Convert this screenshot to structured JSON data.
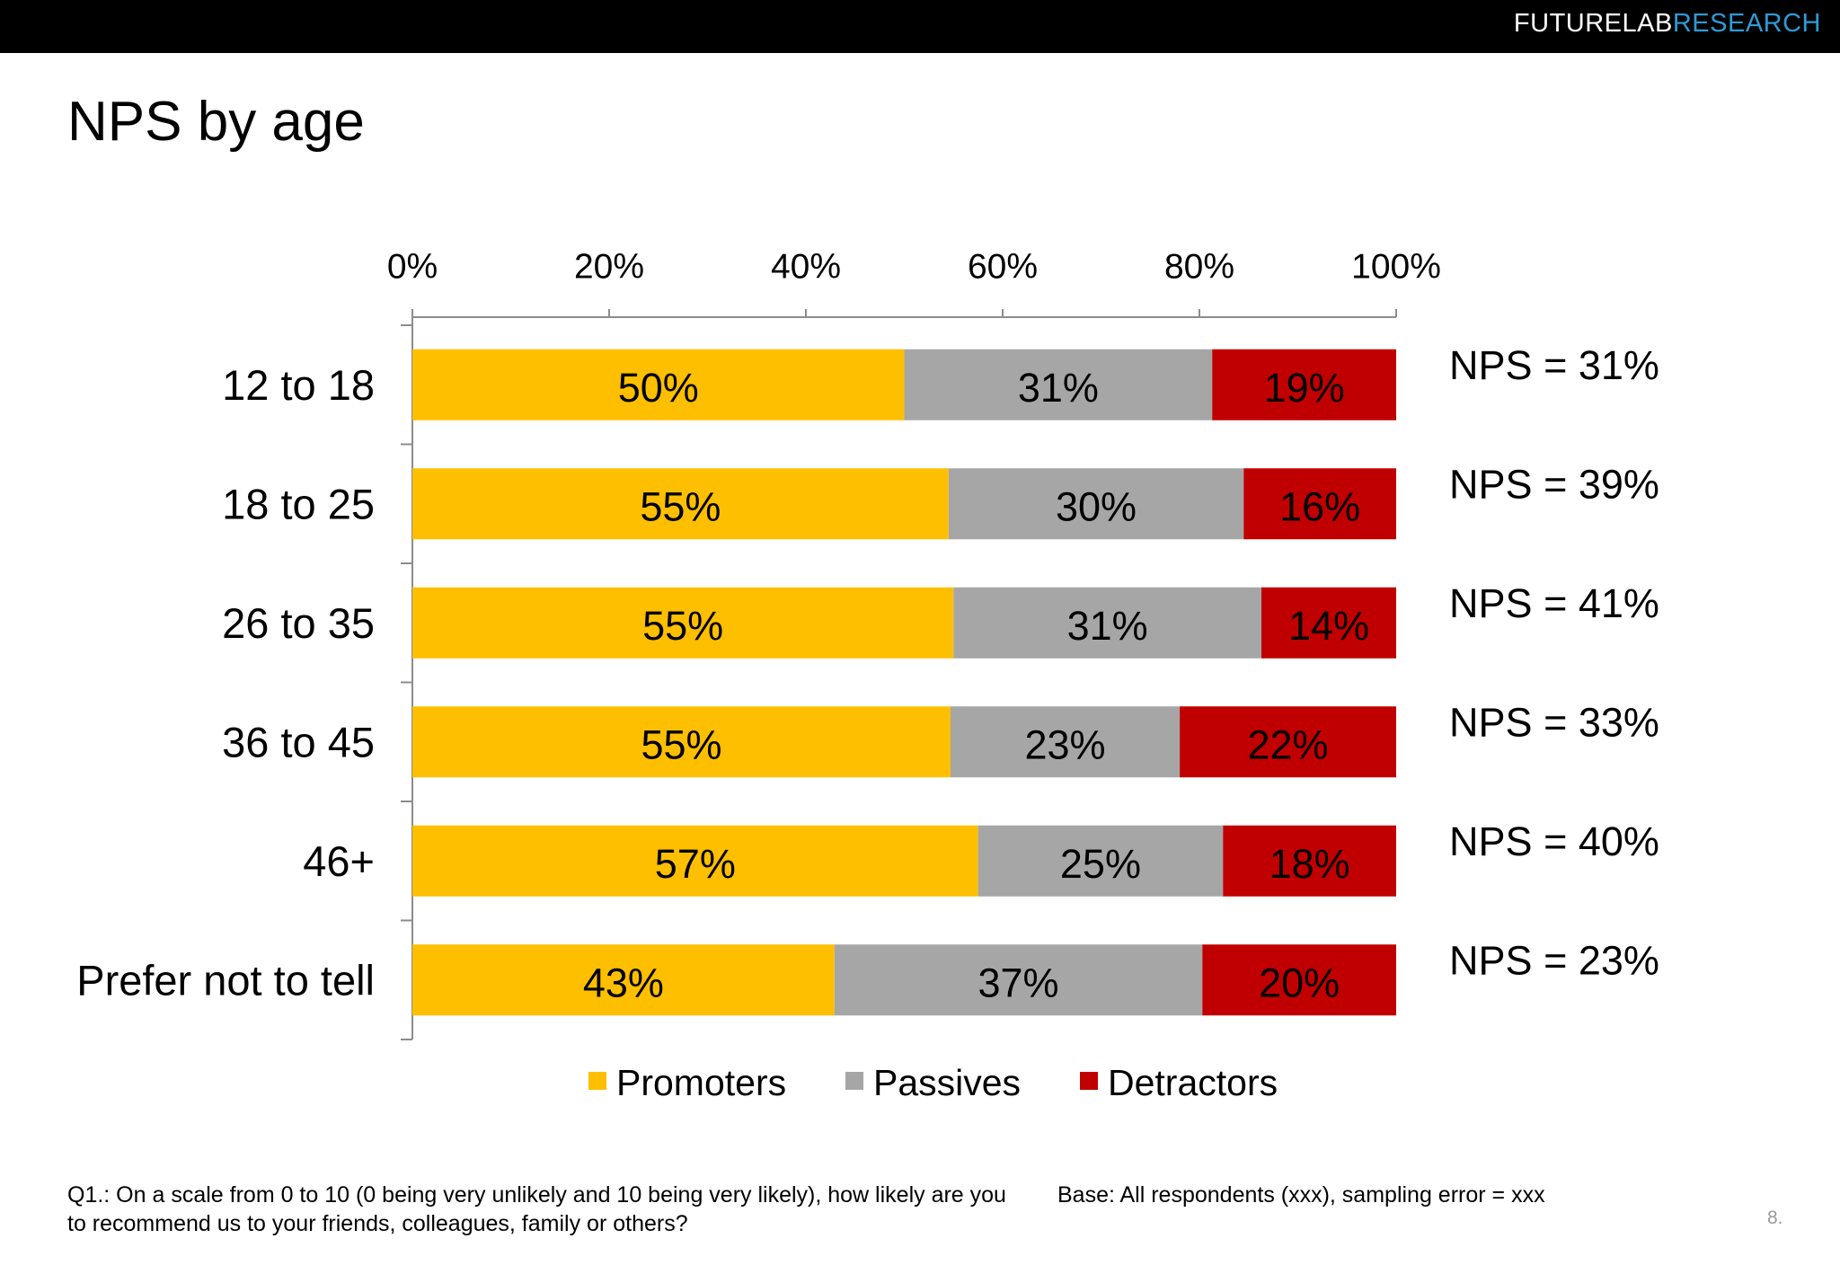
{
  "brand": {
    "part1": "FUTURELAB",
    "part2": "RESEARCH",
    "part2_color": "#2e9bd6"
  },
  "title": "NPS by age",
  "chart_data": {
    "type": "bar",
    "orientation": "horizontal",
    "stacked": true,
    "xlim": [
      0,
      100
    ],
    "x_ticks": [
      "0%",
      "20%",
      "40%",
      "60%",
      "80%",
      "100%"
    ],
    "categories": [
      "12 to 18",
      "18 to 25",
      "26 to 35",
      "36 to 45",
      "46+",
      "Prefer not to tell"
    ],
    "series": [
      {
        "name": "Promoters",
        "color": "#fdbf00",
        "values": [
          50,
          55,
          55,
          55,
          57,
          43
        ]
      },
      {
        "name": "Passives",
        "color": "#a6a6a6",
        "values": [
          31,
          30,
          31,
          23,
          25,
          37
        ]
      },
      {
        "name": "Detractors",
        "color": "#c00000",
        "values": [
          19,
          16,
          14,
          22,
          18,
          20
        ]
      }
    ],
    "segment_widths": [
      [
        50,
        31.3,
        18.7
      ],
      [
        54.5,
        30,
        15.5
      ],
      [
        55,
        31.3,
        13.7
      ],
      [
        54.7,
        23.3,
        22
      ],
      [
        57.5,
        24.9,
        17.6
      ],
      [
        42.9,
        37.4,
        19.7
      ]
    ],
    "nps_labels": [
      "NPS = 31%",
      "NPS = 39%",
      "NPS = 41%",
      "NPS = 33%",
      "NPS = 40%",
      "NPS = 23%"
    ],
    "legend_position": "bottom",
    "grid": false
  },
  "footnotes": {
    "question": "Q1.: On a scale from 0 to 10 (0 being very unlikely and 10 being very likely), how likely are you to recommend us to your friends, colleagues, family or others?",
    "base": "Base: All respondents (xxx), sampling error = xxx"
  },
  "page_number": "8."
}
